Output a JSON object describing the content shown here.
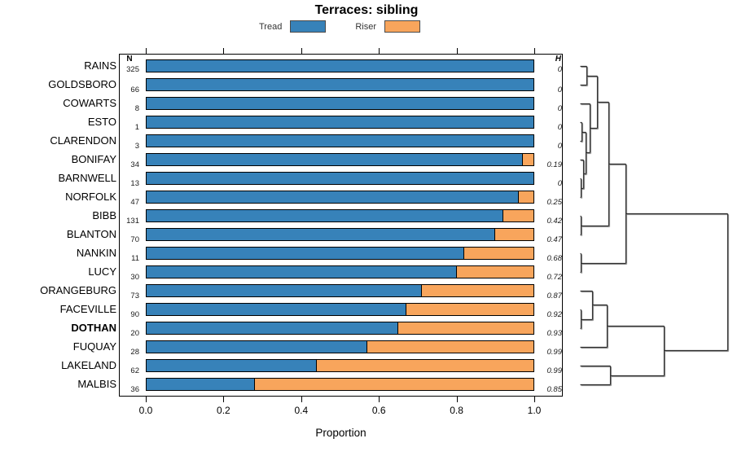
{
  "chart_data": {
    "type": "bar",
    "orientation": "horizontal_stacked",
    "title": "Terraces: sibling",
    "xlabel": "Proportion",
    "xlim": [
      0.0,
      1.0
    ],
    "xticks": [
      "0.0",
      "0.2",
      "0.4",
      "0.6",
      "0.8",
      "1.0"
    ],
    "grid": false,
    "legend": {
      "position": "top",
      "entries": [
        {
          "label": "Tread",
          "color": "#3782B9"
        },
        {
          "label": "Riser",
          "color": "#F8A55C"
        }
      ]
    },
    "columns": {
      "n_header": "N",
      "h_header": "H"
    },
    "rows": [
      {
        "name": "RAINS",
        "n": 325,
        "tread": 1.0,
        "riser": 0.0,
        "h": "0"
      },
      {
        "name": "GOLDSBORO",
        "n": 66,
        "tread": 1.0,
        "riser": 0.0,
        "h": "0"
      },
      {
        "name": "COWARTS",
        "n": 8,
        "tread": 1.0,
        "riser": 0.0,
        "h": "0"
      },
      {
        "name": "ESTO",
        "n": 1,
        "tread": 1.0,
        "riser": 0.0,
        "h": "0"
      },
      {
        "name": "CLARENDON",
        "n": 3,
        "tread": 1.0,
        "riser": 0.0,
        "h": "0"
      },
      {
        "name": "BONIFAY",
        "n": 34,
        "tread": 0.97,
        "riser": 0.03,
        "h": "0.19"
      },
      {
        "name": "BARNWELL",
        "n": 13,
        "tread": 1.0,
        "riser": 0.0,
        "h": "0"
      },
      {
        "name": "NORFOLK",
        "n": 47,
        "tread": 0.96,
        "riser": 0.04,
        "h": "0.25"
      },
      {
        "name": "BIBB",
        "n": 131,
        "tread": 0.92,
        "riser": 0.08,
        "h": "0.42"
      },
      {
        "name": "BLANTON",
        "n": 70,
        "tread": 0.9,
        "riser": 0.1,
        "h": "0.47"
      },
      {
        "name": "NANKIN",
        "n": 11,
        "tread": 0.82,
        "riser": 0.18,
        "h": "0.68"
      },
      {
        "name": "LUCY",
        "n": 30,
        "tread": 0.8,
        "riser": 0.2,
        "h": "0.72"
      },
      {
        "name": "ORANGEBURG",
        "n": 73,
        "tread": 0.71,
        "riser": 0.29,
        "h": "0.87"
      },
      {
        "name": "FACEVILLE",
        "n": 90,
        "tread": 0.67,
        "riser": 0.33,
        "h": "0.92"
      },
      {
        "name": "DOTHAN",
        "n": 20,
        "tread": 0.65,
        "riser": 0.35,
        "h": "0.93",
        "bold": true
      },
      {
        "name": "FUQUAY",
        "n": 28,
        "tread": 0.57,
        "riser": 0.43,
        "h": "0.99"
      },
      {
        "name": "LAKELAND",
        "n": 62,
        "tread": 0.44,
        "riser": 0.56,
        "h": "0.99"
      },
      {
        "name": "MALBIS",
        "n": 36,
        "tread": 0.28,
        "riser": 0.72,
        "h": "0.85"
      }
    ],
    "dendrogram": {
      "side": "right",
      "merges": [
        {
          "id": "M0",
          "a": "L0",
          "b": "L1",
          "h": 0.047
        },
        {
          "id": "M1",
          "a": "L6",
          "b": "L7",
          "h": 0.008
        },
        {
          "id": "M2",
          "a": "L5",
          "b": "M1",
          "h": 0.025
        },
        {
          "id": "M3",
          "a": "L3",
          "b": "L4",
          "h": 0.014
        },
        {
          "id": "M4",
          "a": "M3",
          "b": "M2",
          "h": 0.041
        },
        {
          "id": "M5",
          "a": "L2",
          "b": "M4",
          "h": 0.069
        },
        {
          "id": "M6",
          "a": "M0",
          "b": "M5",
          "h": 0.118
        },
        {
          "id": "M7",
          "a": "L8",
          "b": "L9",
          "h": 0.008
        },
        {
          "id": "M8",
          "a": "M6",
          "b": "M7",
          "h": 0.196
        },
        {
          "id": "M9",
          "a": "L10",
          "b": "L11",
          "h": 0.008
        },
        {
          "id": "M10",
          "a": "M8",
          "b": "M9",
          "h": 0.311
        },
        {
          "id": "M11",
          "a": "L13",
          "b": "L14",
          "h": 0.008
        },
        {
          "id": "M12",
          "a": "L12",
          "b": "M11",
          "h": 0.085
        },
        {
          "id": "M13",
          "a": "M12",
          "b": "L15",
          "h": 0.185
        },
        {
          "id": "M14",
          "a": "L16",
          "b": "L17",
          "h": 0.207
        },
        {
          "id": "M15",
          "a": "M13",
          "b": "M14",
          "h": 0.57
        },
        {
          "id": "M16",
          "a": "M10",
          "b": "M15",
          "h": 1.0
        }
      ]
    }
  }
}
